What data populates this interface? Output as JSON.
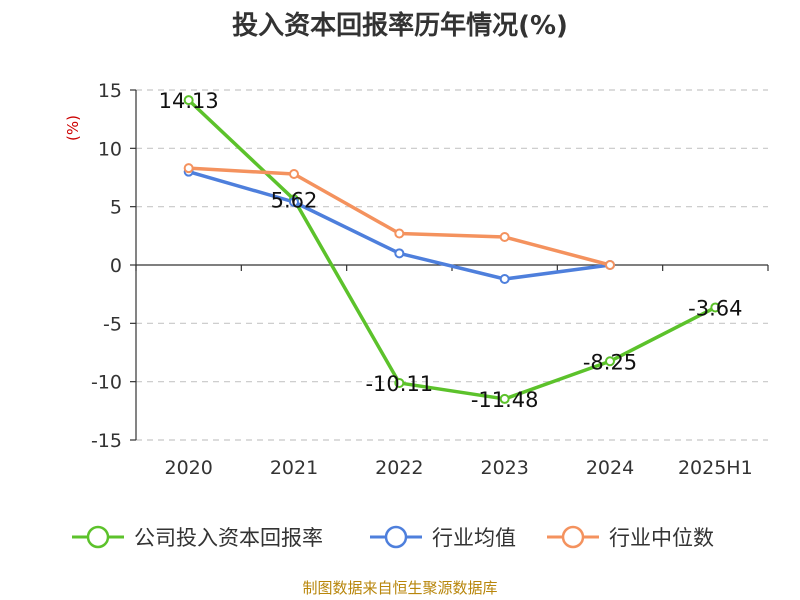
{
  "title": "投入资本回报率历年情况(%)",
  "source_text": "制图数据来自恒生聚源数据库",
  "chart_data": {
    "type": "line",
    "title": "投入资本回报率历年情况(%)",
    "ylabel": "(%)",
    "categories": [
      "2020",
      "2021",
      "2022",
      "2023",
      "2024",
      "2025H1"
    ],
    "ylim": [
      -15,
      15
    ],
    "yticks": [
      15,
      10,
      5,
      0,
      -5,
      -10,
      -15
    ],
    "grid": true,
    "legend_position": "bottom",
    "series": [
      {
        "name": "公司投入资本回报率",
        "color": "#5cc22b",
        "values": [
          14.13,
          5.62,
          -10.11,
          -11.48,
          -8.25,
          -3.64
        ],
        "labels": [
          "14.13",
          "5.62",
          "-10.11",
          "-11.48",
          "-8.25",
          "-3.64"
        ]
      },
      {
        "name": "行业均值",
        "color": "#4e7fdc",
        "values": [
          8.0,
          5.4,
          1.0,
          -1.2,
          0.0,
          null
        ]
      },
      {
        "name": "行业中位数",
        "color": "#f4925e",
        "values": [
          8.3,
          7.8,
          2.7,
          2.4,
          0.0,
          null
        ]
      }
    ]
  }
}
